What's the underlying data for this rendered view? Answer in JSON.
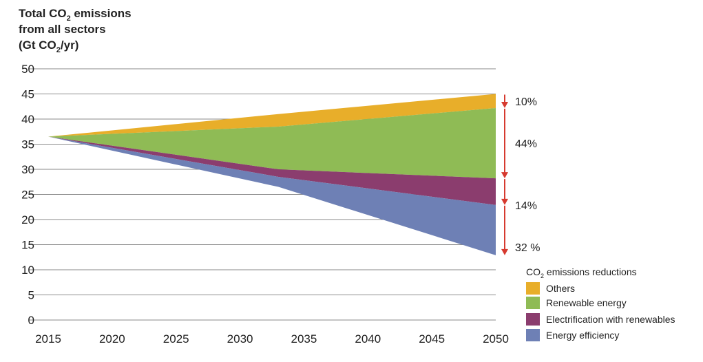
{
  "chart_data": {
    "type": "area",
    "title": {
      "line1": "Total CO",
      "line1_sub": "2",
      "line1_rest": " emissions",
      "line2": "from all sectors",
      "line3_pre": "(Gt CO",
      "line3_sub": "2",
      "line3_post": "/yr)"
    },
    "x_ticks": [
      "2015",
      "2020",
      "2025",
      "2030",
      "2035",
      "2040",
      "2045",
      "2050"
    ],
    "y_ticks": [
      "0",
      "5",
      "10",
      "15",
      "20",
      "25",
      "30",
      "35",
      "40",
      "45",
      "50"
    ],
    "xlim": [
      2015,
      2050
    ],
    "ylim": [
      0,
      50
    ],
    "grid": "horizontal",
    "boundaries": {
      "x": [
        2015,
        2033,
        2050
      ],
      "top": [
        36.5,
        41,
        45
      ],
      "after_others": [
        36.5,
        38.5,
        42.2
      ],
      "after_renewables": [
        36.5,
        30,
        28.2
      ],
      "after_electrification": [
        36.5,
        28.5,
        22.9
      ],
      "after_efficiency": [
        36.5,
        26.5,
        12.9
      ]
    },
    "series": [
      {
        "name": "Others",
        "color": "#E8AE2A",
        "share": "10%"
      },
      {
        "name": "Renewable energy",
        "color": "#8FBB55",
        "share": "44%"
      },
      {
        "name": "Electrification with renewables",
        "color": "#8B3D6E",
        "share": "14%"
      },
      {
        "name": "Energy efficiency",
        "color": "#6E80B5",
        "share": "32 %"
      }
    ],
    "legend": {
      "title_pre": "CO",
      "title_sub": "2",
      "title_post": " emissions reductions",
      "placement": "bottom-right"
    },
    "arrow_color": "#D63A2F"
  }
}
